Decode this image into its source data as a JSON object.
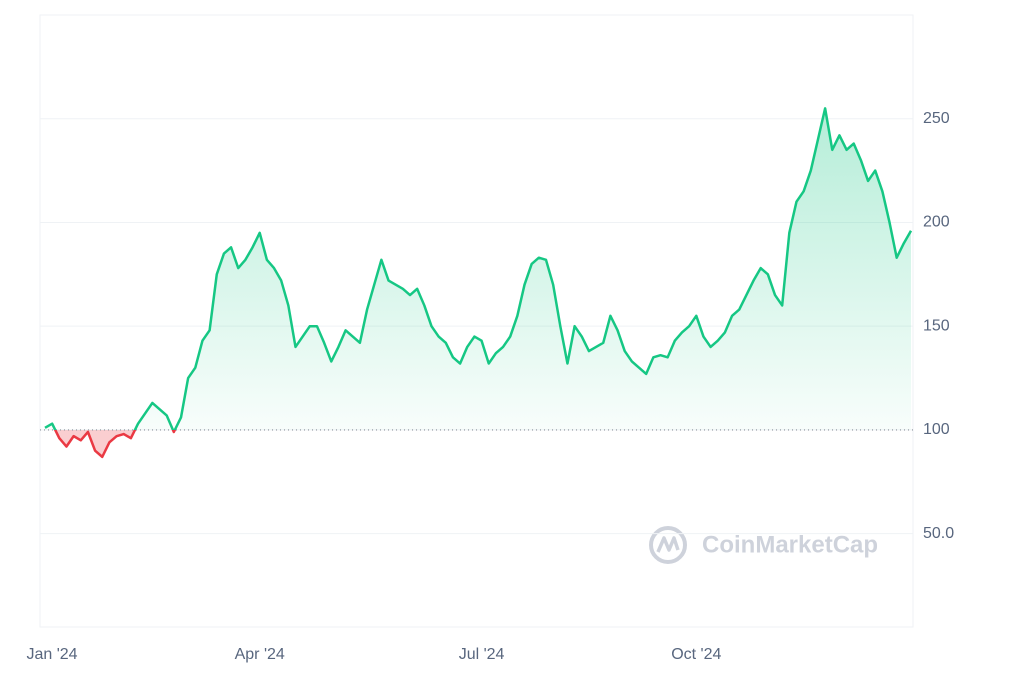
{
  "chart_data": {
    "type": "line",
    "categories": [
      "Jan '24",
      null,
      null,
      null,
      null,
      null,
      null,
      null,
      null,
      null,
      null,
      null,
      null,
      null,
      null,
      null,
      null,
      null,
      null,
      null,
      null,
      null,
      null,
      null,
      null,
      null,
      null,
      null,
      null,
      null,
      "Apr '24",
      null,
      null,
      null,
      null,
      null,
      null,
      null,
      null,
      null,
      null,
      null,
      null,
      null,
      null,
      null,
      null,
      null,
      null,
      null,
      null,
      null,
      null,
      null,
      null,
      null,
      null,
      null,
      null,
      null,
      null,
      "Jul '24",
      null,
      null,
      null,
      null,
      null,
      null,
      null,
      null,
      null,
      null,
      null,
      null,
      null,
      null,
      null,
      null,
      null,
      null,
      null,
      null,
      null,
      null,
      null,
      null,
      null,
      null,
      null,
      null,
      null,
      "Oct '24",
      null,
      null,
      null,
      null,
      null,
      null,
      null,
      null,
      null,
      null,
      null,
      null,
      null,
      null,
      null,
      null,
      null,
      null,
      null,
      null,
      null,
      null,
      null,
      null,
      null,
      null,
      null,
      null,
      null,
      null
    ],
    "values": [
      101,
      103,
      96,
      92,
      97,
      95,
      99,
      90,
      87,
      94,
      97,
      98,
      96,
      103,
      108,
      113,
      110,
      107,
      99,
      106,
      125,
      130,
      143,
      148,
      175,
      185,
      188,
      178,
      182,
      188,
      195,
      182,
      178,
      172,
      160,
      140,
      145,
      150,
      150,
      142,
      133,
      140,
      148,
      145,
      142,
      158,
      170,
      182,
      172,
      170,
      168,
      165,
      168,
      160,
      150,
      145,
      142,
      135,
      132,
      140,
      145,
      143,
      132,
      137,
      140,
      145,
      155,
      170,
      180,
      183,
      182,
      170,
      150,
      132,
      150,
      145,
      138,
      140,
      142,
      155,
      148,
      138,
      133,
      130,
      127,
      135,
      136,
      135,
      143,
      147,
      150,
      155,
      145,
      140,
      143,
      147,
      155,
      158,
      165,
      172,
      178,
      175,
      165,
      160,
      195,
      210,
      215,
      225,
      240,
      255,
      235,
      242,
      235,
      238,
      230,
      220,
      225,
      215,
      200,
      183,
      190,
      196
    ],
    "up_color": "#16c784",
    "down_color": "#ea3943",
    "baseline": 100,
    "ylim": [
      5,
      300
    ],
    "yticks": [
      {
        "value": 50,
        "label": "50.0"
      },
      100,
      150,
      200,
      250
    ],
    "grid": true,
    "watermark": "CoinMarketCap"
  }
}
